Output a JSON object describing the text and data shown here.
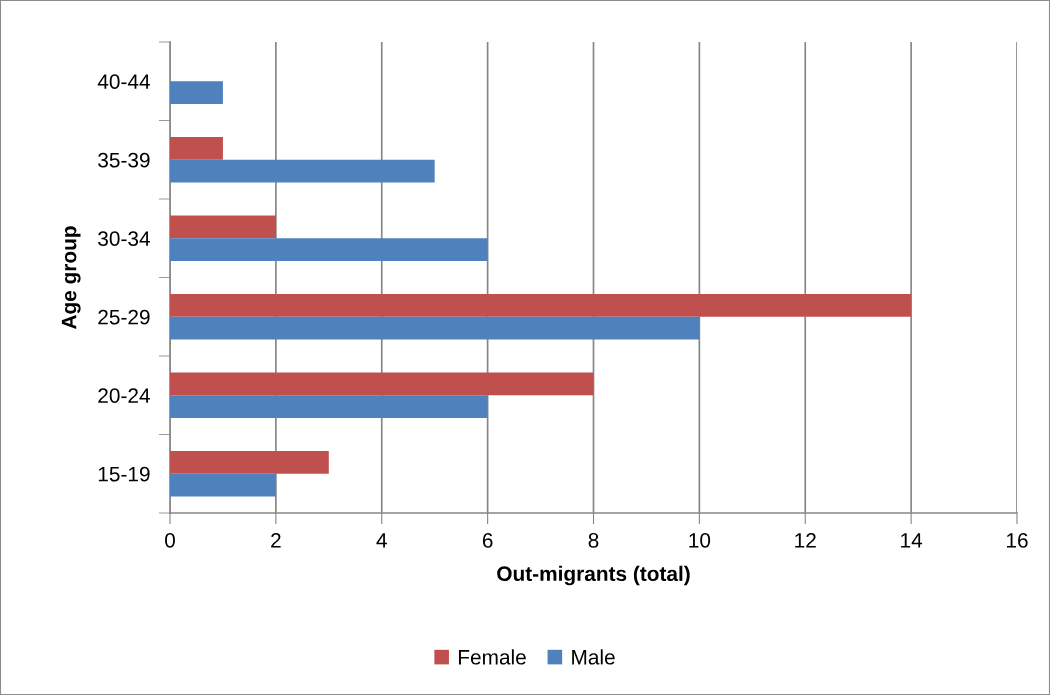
{
  "chart_data": {
    "type": "bar",
    "orientation": "horizontal",
    "categories": [
      "40-44",
      "35-39",
      "30-34",
      "25-29",
      "20-24",
      "15-19"
    ],
    "series": [
      {
        "name": "Female",
        "color": "#c0504d",
        "values": [
          null,
          1,
          2,
          14,
          8,
          3
        ]
      },
      {
        "name": "Male",
        "color": "#4f81bd",
        "values": [
          1,
          5,
          6,
          10,
          6,
          2
        ]
      }
    ],
    "xlabel": "Out-migrants (total)",
    "ylabel": "Age group",
    "xlim": [
      0,
      16
    ],
    "xticks": [
      0,
      2,
      4,
      6,
      8,
      10,
      12,
      14,
      16
    ],
    "grid": "x",
    "legend": "bottom"
  }
}
